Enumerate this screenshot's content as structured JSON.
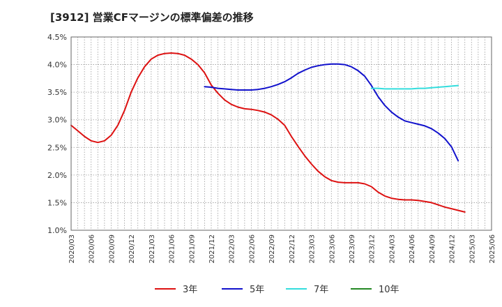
{
  "chart_data": {
    "type": "line",
    "title": "[3912]  営業CFマージンの標準偏差の推移",
    "xlabel": "",
    "ylabel": "",
    "ylim": [
      1.0,
      4.5
    ],
    "yticks": [
      "1.0%",
      "1.5%",
      "2.0%",
      "2.5%",
      "3.0%",
      "3.5%",
      "4.0%",
      "4.5%"
    ],
    "x": [
      "2020/03",
      "2020/06",
      "2020/09",
      "2020/12",
      "2021/03",
      "2021/06",
      "2021/09",
      "2021/12",
      "2022/03",
      "2022/06",
      "2022/09",
      "2022/12",
      "2023/03",
      "2023/06",
      "2023/09",
      "2023/12",
      "2024/03",
      "2024/06",
      "2024/09",
      "2024/12",
      "2025/03",
      "2025/06"
    ],
    "grid": true,
    "legend_position": "bottom",
    "series": [
      {
        "name": "3年",
        "color": "#dd1111",
        "points": [
          [
            "2020/03",
            2.9
          ],
          [
            "2020/04",
            2.8
          ],
          [
            "2020/05",
            2.7
          ],
          [
            "2020/06",
            2.62
          ],
          [
            "2020/07",
            2.59
          ],
          [
            "2020/08",
            2.62
          ],
          [
            "2020/09",
            2.72
          ],
          [
            "2020/10",
            2.9
          ],
          [
            "2020/11",
            3.17
          ],
          [
            "2020/12",
            3.5
          ],
          [
            "2021/01",
            3.76
          ],
          [
            "2021/02",
            3.96
          ],
          [
            "2021/03",
            4.1
          ],
          [
            "2021/04",
            4.17
          ],
          [
            "2021/05",
            4.2
          ],
          [
            "2021/06",
            4.21
          ],
          [
            "2021/07",
            4.2
          ],
          [
            "2021/08",
            4.17
          ],
          [
            "2021/09",
            4.1
          ],
          [
            "2021/10",
            4.0
          ],
          [
            "2021/11",
            3.85
          ],
          [
            "2021/12",
            3.63
          ],
          [
            "2022/01",
            3.48
          ],
          [
            "2022/02",
            3.36
          ],
          [
            "2022/03",
            3.28
          ],
          [
            "2022/04",
            3.23
          ],
          [
            "2022/05",
            3.2
          ],
          [
            "2022/06",
            3.19
          ],
          [
            "2022/07",
            3.17
          ],
          [
            "2022/08",
            3.14
          ],
          [
            "2022/09",
            3.09
          ],
          [
            "2022/10",
            3.01
          ],
          [
            "2022/11",
            2.9
          ],
          [
            "2022/12",
            2.7
          ],
          [
            "2023/01",
            2.52
          ],
          [
            "2023/02",
            2.35
          ],
          [
            "2023/03",
            2.2
          ],
          [
            "2023/04",
            2.07
          ],
          [
            "2023/05",
            1.97
          ],
          [
            "2023/06",
            1.9
          ],
          [
            "2023/07",
            1.87
          ],
          [
            "2023/08",
            1.86
          ],
          [
            "2023/09",
            1.86
          ],
          [
            "2023/10",
            1.86
          ],
          [
            "2023/11",
            1.84
          ],
          [
            "2023/12",
            1.79
          ],
          [
            "2024/01",
            1.69
          ],
          [
            "2024/02",
            1.62
          ],
          [
            "2024/03",
            1.58
          ],
          [
            "2024/04",
            1.56
          ],
          [
            "2024/05",
            1.55
          ],
          [
            "2024/06",
            1.55
          ],
          [
            "2024/07",
            1.54
          ],
          [
            "2024/08",
            1.52
          ],
          [
            "2024/09",
            1.5
          ],
          [
            "2024/10",
            1.46
          ],
          [
            "2024/11",
            1.42
          ],
          [
            "2024/12",
            1.39
          ],
          [
            "2025/01",
            1.36
          ],
          [
            "2025/02",
            1.33
          ]
        ]
      },
      {
        "name": "5年",
        "color": "#1111cc",
        "points": [
          [
            "2021/11",
            3.6
          ],
          [
            "2021/12",
            3.59
          ],
          [
            "2022/01",
            3.57
          ],
          [
            "2022/02",
            3.56
          ],
          [
            "2022/03",
            3.55
          ],
          [
            "2022/04",
            3.54
          ],
          [
            "2022/05",
            3.54
          ],
          [
            "2022/06",
            3.54
          ],
          [
            "2022/07",
            3.55
          ],
          [
            "2022/08",
            3.57
          ],
          [
            "2022/09",
            3.6
          ],
          [
            "2022/10",
            3.64
          ],
          [
            "2022/11",
            3.69
          ],
          [
            "2022/12",
            3.76
          ],
          [
            "2023/01",
            3.84
          ],
          [
            "2023/02",
            3.9
          ],
          [
            "2023/03",
            3.95
          ],
          [
            "2023/04",
            3.98
          ],
          [
            "2023/05",
            4.0
          ],
          [
            "2023/06",
            4.01
          ],
          [
            "2023/07",
            4.01
          ],
          [
            "2023/08",
            4.0
          ],
          [
            "2023/09",
            3.96
          ],
          [
            "2023/10",
            3.89
          ],
          [
            "2023/11",
            3.79
          ],
          [
            "2023/12",
            3.62
          ],
          [
            "2024/01",
            3.42
          ],
          [
            "2024/02",
            3.26
          ],
          [
            "2024/03",
            3.14
          ],
          [
            "2024/04",
            3.05
          ],
          [
            "2024/05",
            2.98
          ],
          [
            "2024/06",
            2.95
          ],
          [
            "2024/07",
            2.92
          ],
          [
            "2024/08",
            2.89
          ],
          [
            "2024/09",
            2.84
          ],
          [
            "2024/10",
            2.76
          ],
          [
            "2024/11",
            2.66
          ],
          [
            "2024/12",
            2.51
          ],
          [
            "2025/01",
            2.26
          ]
        ]
      },
      {
        "name": "7年",
        "color": "#33dddd",
        "points": [
          [
            "2023/12",
            3.57
          ],
          [
            "2024/01",
            3.57
          ],
          [
            "2024/02",
            3.56
          ],
          [
            "2024/03",
            3.56
          ],
          [
            "2024/04",
            3.56
          ],
          [
            "2024/05",
            3.56
          ],
          [
            "2024/06",
            3.56
          ],
          [
            "2024/07",
            3.57
          ],
          [
            "2024/08",
            3.57
          ],
          [
            "2024/09",
            3.58
          ],
          [
            "2024/10",
            3.59
          ],
          [
            "2024/11",
            3.6
          ],
          [
            "2024/12",
            3.61
          ],
          [
            "2025/01",
            3.62
          ]
        ]
      },
      {
        "name": "10年",
        "color": "#228822",
        "points": []
      }
    ]
  }
}
